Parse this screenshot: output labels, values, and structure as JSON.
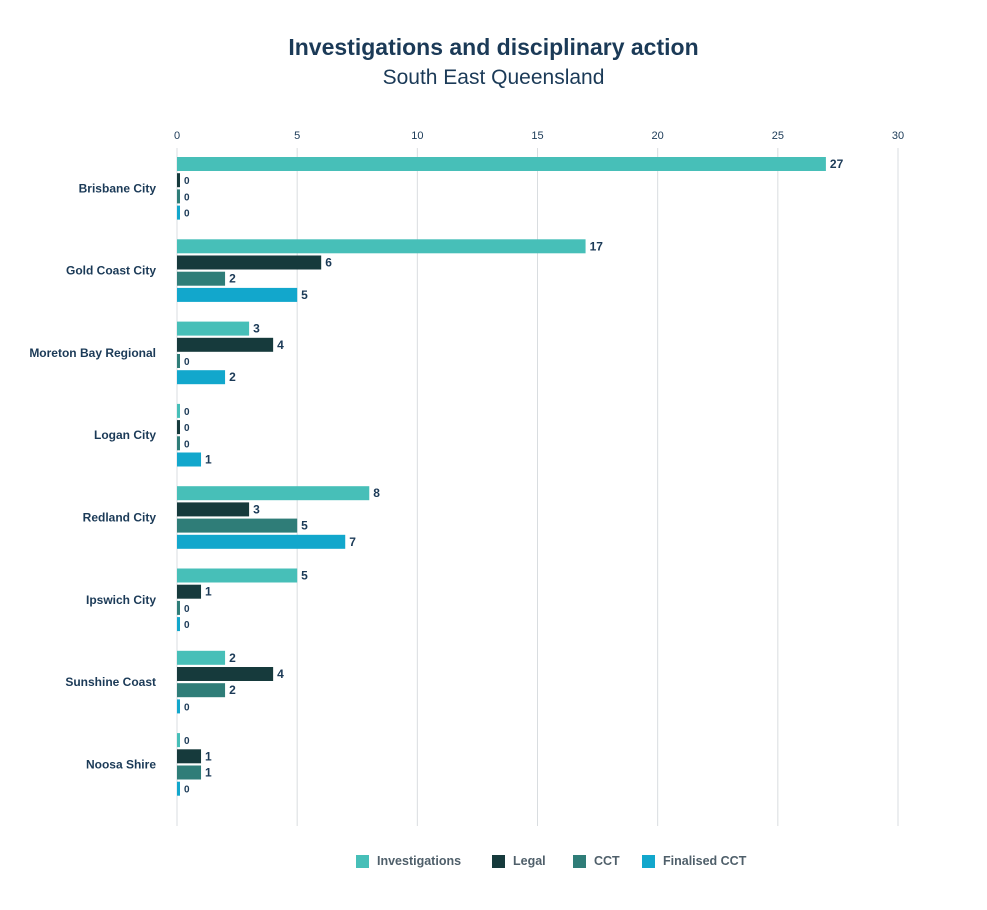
{
  "title": "Investigations and disciplinary action",
  "subtitle": "South East Queensland",
  "colors": {
    "Investigations": "#47bfb8",
    "Legal": "#163a3c",
    "CCT": "#2f7d78",
    "Finalised CCT": "#12a7cc",
    "text": "#1b3a57",
    "grid": "#d9dde0"
  },
  "chart_data": {
    "type": "bar",
    "orientation": "horizontal",
    "title": "Investigations and disciplinary action",
    "subtitle": "South East Queensland",
    "xlim": [
      0,
      30
    ],
    "xticks": [
      0,
      5,
      10,
      15,
      20,
      25,
      30
    ],
    "grid": true,
    "legend_position": "bottom",
    "categories": [
      "Brisbane City",
      "Gold Coast City",
      "Moreton Bay Regional",
      "Logan City",
      "Redland City",
      "Ipswich City",
      "Sunshine Coast",
      "Noosa Shire"
    ],
    "series": [
      {
        "name": "Investigations",
        "values": [
          27,
          17,
          3,
          0,
          8,
          5,
          2,
          0
        ]
      },
      {
        "name": "Legal",
        "values": [
          0,
          6,
          4,
          0,
          3,
          1,
          4,
          1
        ]
      },
      {
        "name": "CCT",
        "values": [
          0,
          2,
          0,
          0,
          5,
          0,
          2,
          1
        ]
      },
      {
        "name": "Finalised CCT",
        "values": [
          0,
          5,
          2,
          1,
          7,
          0,
          0,
          0
        ]
      }
    ]
  }
}
